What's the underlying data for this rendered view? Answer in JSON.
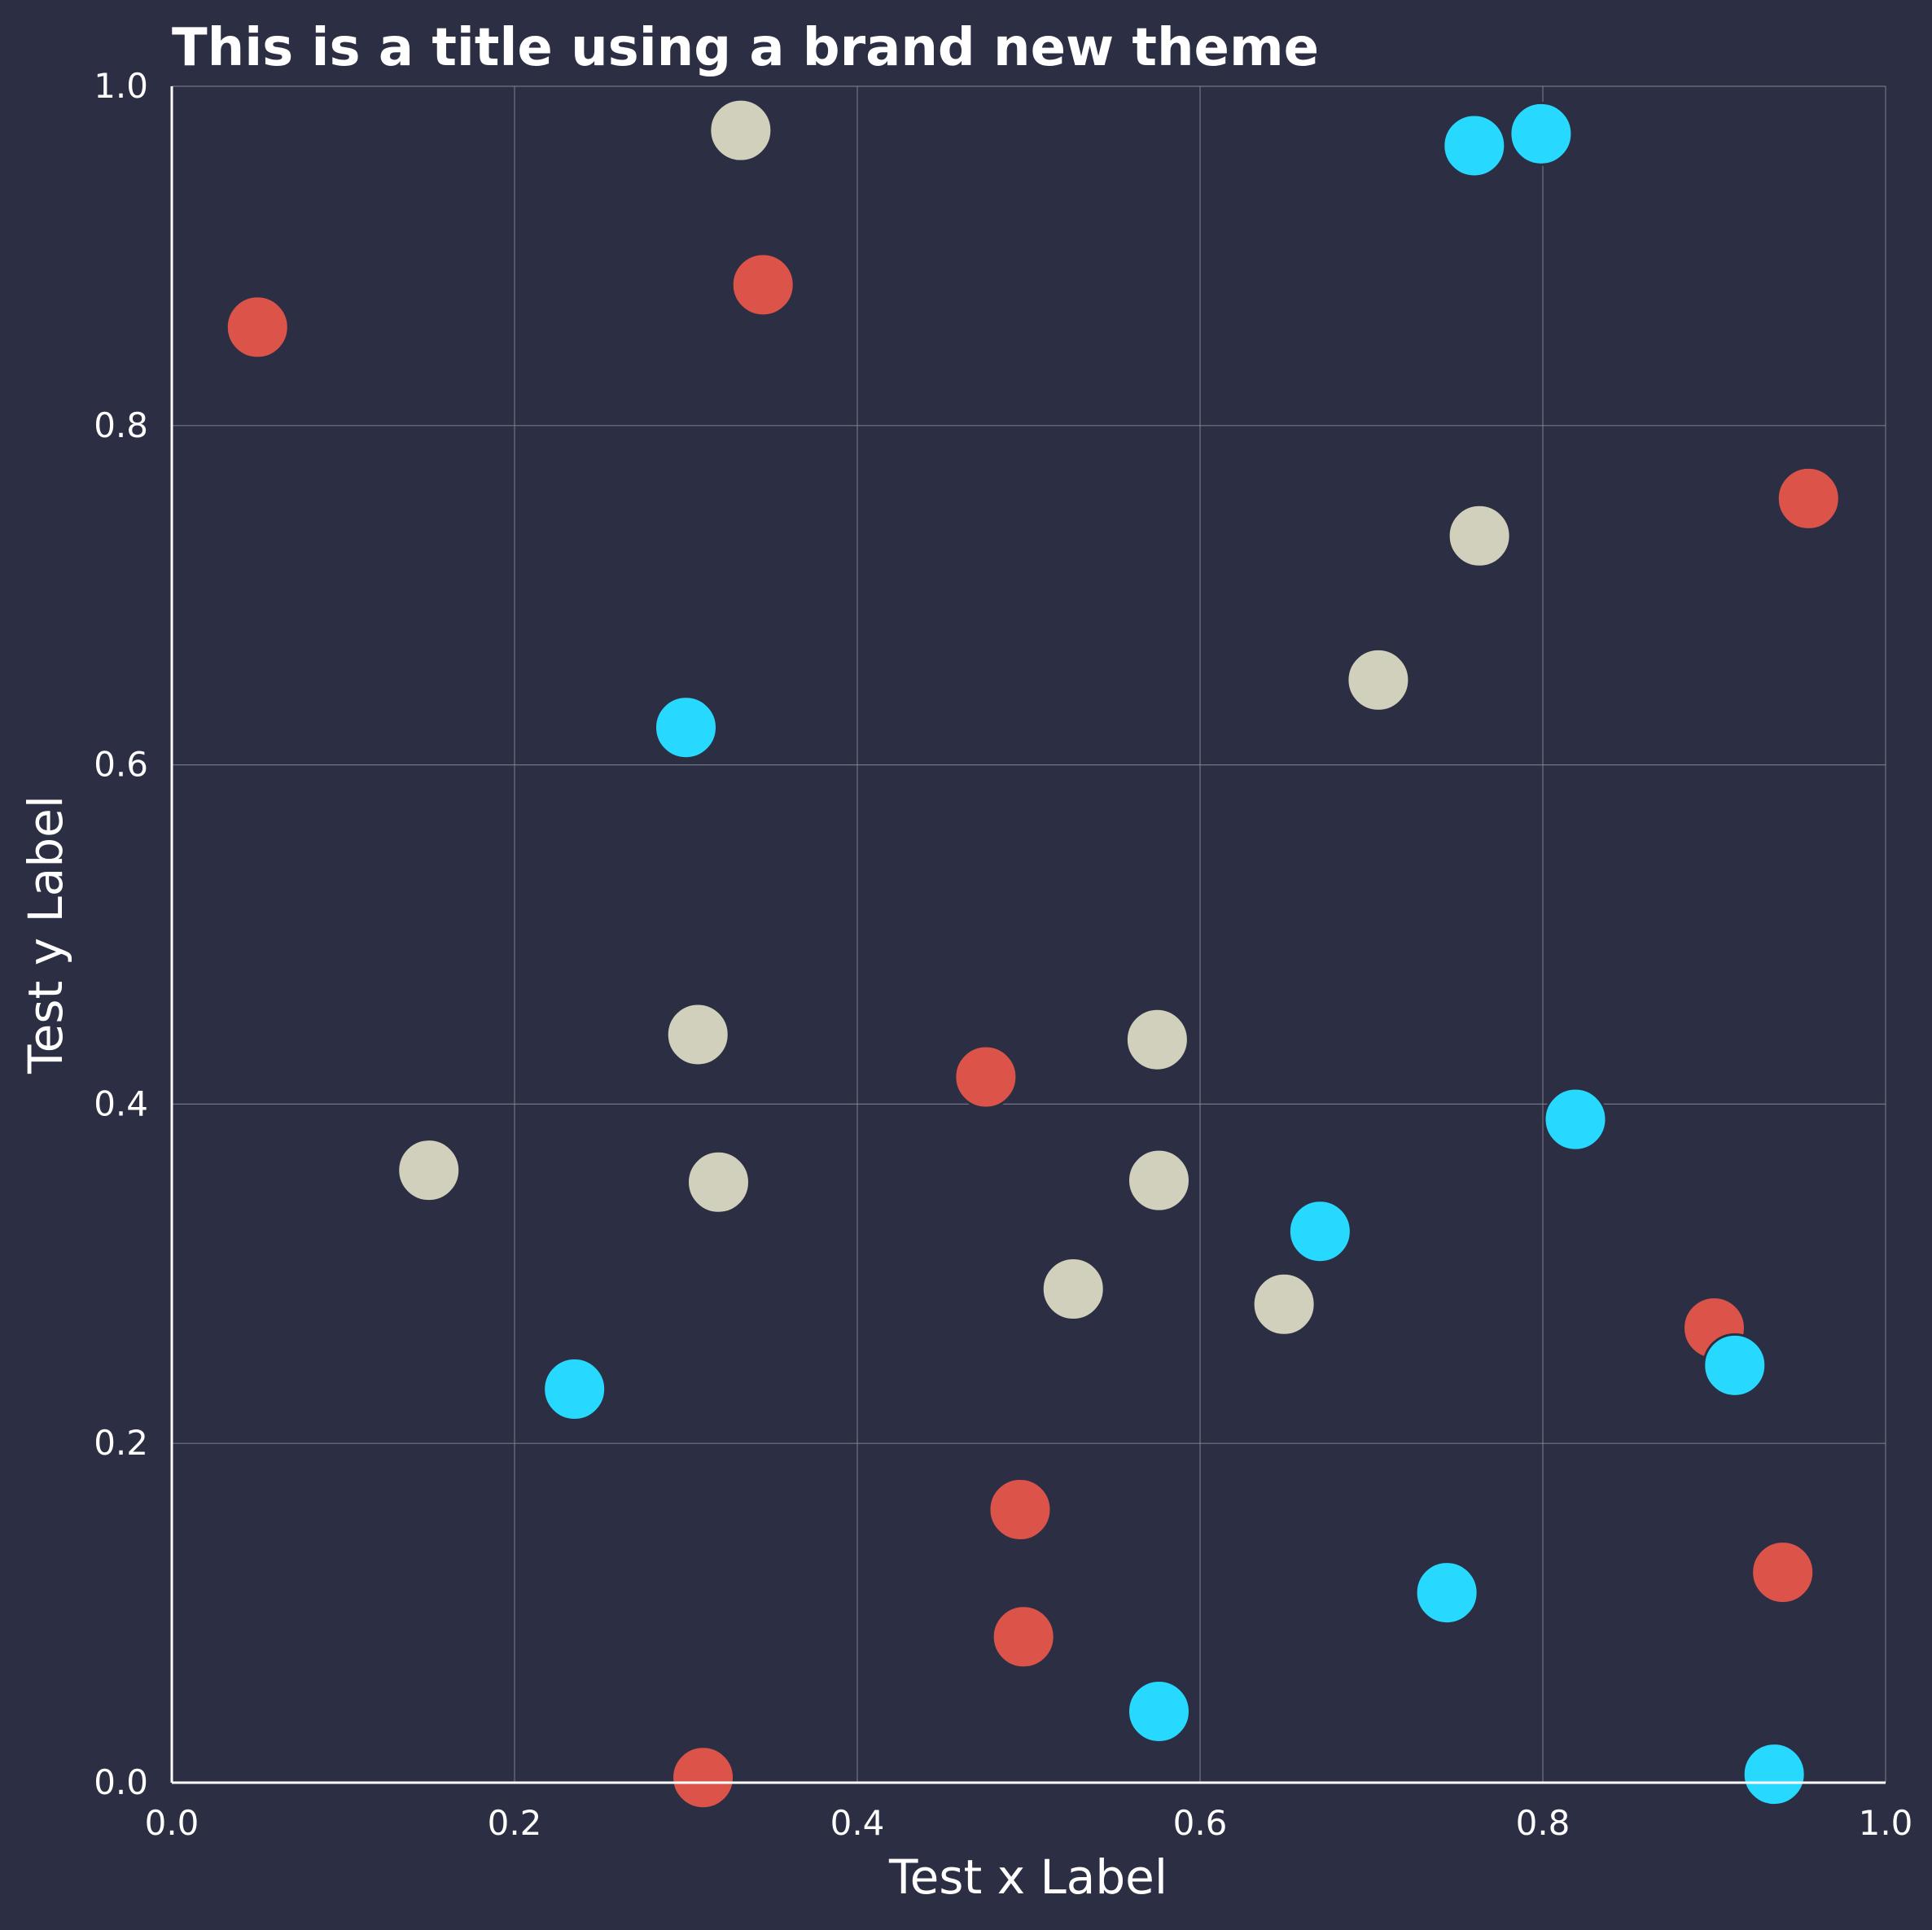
{
  "chart_data": {
    "type": "scatter",
    "title": "This is a title using a brand new theme",
    "xlabel": "Test x Label",
    "ylabel": "Test y Label",
    "xlim": [
      0.0,
      1.0
    ],
    "ylim": [
      0.0,
      1.0
    ],
    "x_ticks": [
      "0.0",
      "0.2",
      "0.4",
      "0.6",
      "0.8",
      "1.0"
    ],
    "y_ticks": [
      "0.0",
      "0.2",
      "0.4",
      "0.6",
      "0.8",
      "1.0"
    ],
    "grid": true,
    "legend": "none",
    "background_color": "#2c2f43",
    "series": [
      {
        "color": "#dc5449",
        "points": [
          [
            0.05,
            0.858
          ],
          [
            0.345,
            0.883
          ],
          [
            0.955,
            0.757
          ],
          [
            0.475,
            0.416
          ],
          [
            0.9,
            0.268
          ],
          [
            0.495,
            0.161
          ],
          [
            0.497,
            0.086
          ],
          [
            0.31,
            0.003
          ],
          [
            0.94,
            0.124
          ]
        ]
      },
      {
        "color": "#d1d0bc",
        "points": [
          [
            0.332,
            0.974
          ],
          [
            0.763,
            0.735
          ],
          [
            0.704,
            0.65
          ],
          [
            0.307,
            0.441
          ],
          [
            0.575,
            0.438
          ],
          [
            0.15,
            0.361
          ],
          [
            0.319,
            0.354
          ],
          [
            0.576,
            0.355
          ],
          [
            0.526,
            0.291
          ],
          [
            0.649,
            0.282
          ]
        ]
      },
      {
        "color": "#27d8ff",
        "points": [
          [
            0.76,
            0.965
          ],
          [
            0.799,
            0.972
          ],
          [
            0.3,
            0.622
          ],
          [
            0.819,
            0.391
          ],
          [
            0.67,
            0.325
          ],
          [
            0.235,
            0.232
          ],
          [
            0.912,
            0.246
          ],
          [
            0.744,
            0.112
          ],
          [
            0.576,
            0.042
          ],
          [
            0.935,
            0.005
          ]
        ]
      }
    ]
  }
}
